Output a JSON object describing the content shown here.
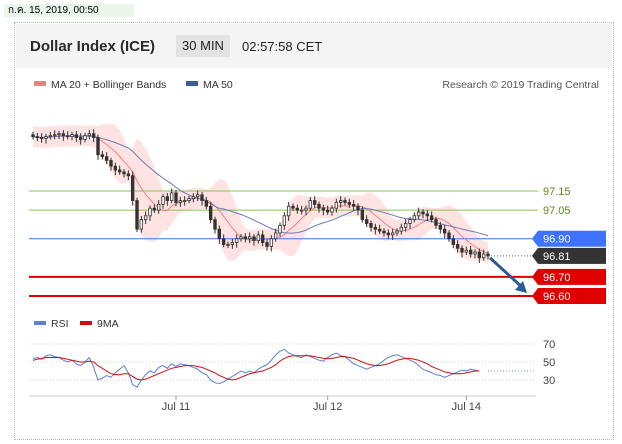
{
  "timestamp": "ก.ค. 15, 2019, 00:50",
  "header": {
    "title": "Dollar Index (ICE)",
    "timeframe": "30 MIN",
    "clock": "02:57:58 CET"
  },
  "legend": {
    "ma20": "MA 20 + Bollinger Bands",
    "ma50": "MA 50",
    "credit": "Research © 2019 Trading Central",
    "rsi": "RSI",
    "rsi_ma": "9MA"
  },
  "colors": {
    "candle": "#333333",
    "bollinger": "#ffdede",
    "ma20": "#f08080",
    "ma50": "#6a7cb8",
    "green_level": "#8bc34a",
    "blue_level": "#3f72ff",
    "red_level": "#e00000",
    "arrow": "#2f5a96",
    "rsi": "#5b7fd6",
    "rsi_ma": "#d01010"
  },
  "chart_data": [
    {
      "type": "candlestick",
      "ylim": [
        96.5,
        97.6
      ],
      "x_ticks": [
        "Jul 11",
        "Jul 12",
        "Jul 14"
      ],
      "x_tick_index": [
        33,
        68,
        100
      ],
      "close": [
        97.435,
        97.43,
        97.425,
        97.435,
        97.44,
        97.445,
        97.45,
        97.44,
        97.435,
        97.445,
        97.43,
        97.42,
        97.44,
        97.45,
        97.43,
        97.34,
        97.33,
        97.31,
        97.28,
        97.26,
        97.25,
        97.24,
        97.23,
        97.1,
        96.95,
        97.0,
        97.02,
        97.06,
        97.05,
        97.08,
        97.12,
        97.1,
        97.14,
        97.09,
        97.1,
        97.1,
        97.11,
        97.12,
        97.13,
        97.1,
        97.07,
        97.0,
        96.95,
        96.9,
        96.87,
        96.87,
        96.88,
        96.9,
        96.91,
        96.9,
        96.91,
        96.89,
        96.92,
        96.88,
        96.86,
        96.9,
        96.93,
        96.97,
        97.02,
        97.07,
        97.06,
        97.05,
        97.05,
        97.06,
        97.1,
        97.08,
        97.06,
        97.05,
        97.04,
        97.06,
        97.09,
        97.1,
        97.09,
        97.08,
        97.07,
        97.05,
        97.0,
        96.98,
        96.96,
        96.95,
        96.94,
        96.93,
        96.92,
        96.93,
        96.94,
        96.96,
        96.98,
        97.0,
        97.02,
        97.04,
        97.03,
        97.02,
        97.0,
        96.97,
        96.95,
        96.93,
        96.9,
        96.87,
        96.85,
        96.83,
        96.84,
        96.82,
        96.83,
        96.8,
        96.82,
        96.81
      ],
      "levels": [
        {
          "value": 97.15,
          "label": "97.15",
          "style": "green"
        },
        {
          "value": 97.05,
          "label": "97.05",
          "style": "green"
        },
        {
          "value": 96.9,
          "label": "96.90",
          "style": "blue"
        },
        {
          "value": 96.81,
          "label": "96.81",
          "style": "current"
        },
        {
          "value": 96.7,
          "label": "96.70",
          "style": "red"
        },
        {
          "value": 96.6,
          "label": "96.60",
          "style": "red"
        }
      ],
      "series": [
        {
          "name": "MA 20 + Bollinger Bands"
        },
        {
          "name": "MA 50"
        }
      ]
    },
    {
      "type": "line",
      "ylim": [
        20,
        80
      ],
      "y_ticks": [
        30,
        50,
        70
      ],
      "series": [
        {
          "name": "RSI",
          "values": [
            54,
            55,
            53,
            57,
            58,
            56,
            55,
            52,
            50,
            52,
            48,
            46,
            50,
            55,
            44,
            30,
            32,
            35,
            33,
            38,
            42,
            46,
            38,
            25,
            22,
            30,
            36,
            40,
            38,
            44,
            46,
            43,
            48,
            45,
            48,
            47,
            46,
            44,
            42,
            38,
            36,
            30,
            27,
            26,
            28,
            31,
            34,
            37,
            40,
            38,
            40,
            38,
            42,
            45,
            47,
            52,
            58,
            62,
            64,
            60,
            58,
            56,
            55,
            58,
            56,
            54,
            52,
            51,
            55,
            58,
            60,
            57,
            56,
            52,
            48,
            46,
            44,
            42,
            44,
            46,
            48,
            52,
            55,
            57,
            58,
            56,
            54,
            52,
            50,
            46,
            42,
            40,
            38,
            36,
            35,
            33,
            35,
            37,
            39,
            41,
            40,
            42,
            41,
            40
          ]
        },
        {
          "name": "9MA",
          "values": [
            52,
            53,
            54,
            55,
            55,
            55,
            55,
            54,
            53,
            52,
            51,
            50,
            50,
            51,
            50,
            46,
            43,
            40,
            37,
            36,
            36,
            37,
            37,
            34,
            31,
            30,
            31,
            33,
            35,
            37,
            39,
            41,
            43,
            44,
            45,
            46,
            46,
            46,
            45,
            44,
            42,
            40,
            38,
            35,
            33,
            31,
            30,
            31,
            33,
            35,
            37,
            38,
            39,
            40,
            42,
            44,
            47,
            51,
            54,
            56,
            57,
            57,
            57,
            57,
            57,
            56,
            55,
            54,
            54,
            54,
            55,
            56,
            56,
            55,
            54,
            52,
            50,
            48,
            47,
            46,
            46,
            47,
            48,
            50,
            52,
            53,
            54,
            54,
            53,
            52,
            50,
            48,
            45,
            43,
            41,
            39,
            38,
            37,
            37,
            37,
            38,
            39,
            40,
            40
          ]
        }
      ]
    }
  ]
}
